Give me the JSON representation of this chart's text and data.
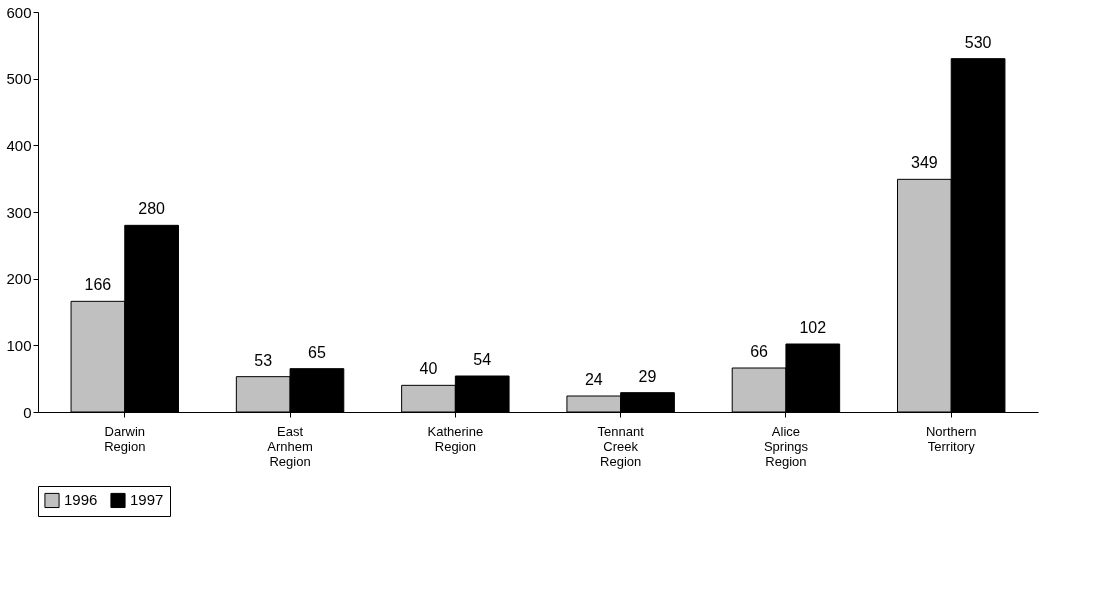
{
  "chart_data": {
    "type": "bar",
    "categories": [
      "Darwin\nRegion",
      "East\nArnhem\nRegion",
      "Katherine\nRegion",
      "Tennant\nCreek\nRegion",
      "Alice\nSprings\nRegion",
      "Northern\nTerritory"
    ],
    "series": [
      {
        "name": "1996",
        "color": "#c0c0c0",
        "values": [
          166,
          53,
          40,
          24,
          66,
          349
        ]
      },
      {
        "name": "1997",
        "color": "#000000",
        "values": [
          280,
          65,
          54,
          29,
          102,
          530
        ]
      }
    ],
    "ylim": [
      0,
      600
    ],
    "yticks": [
      0,
      100,
      200,
      300,
      400,
      500,
      600
    ],
    "grid": false,
    "legend": "bottom",
    "data_labels": true
  }
}
